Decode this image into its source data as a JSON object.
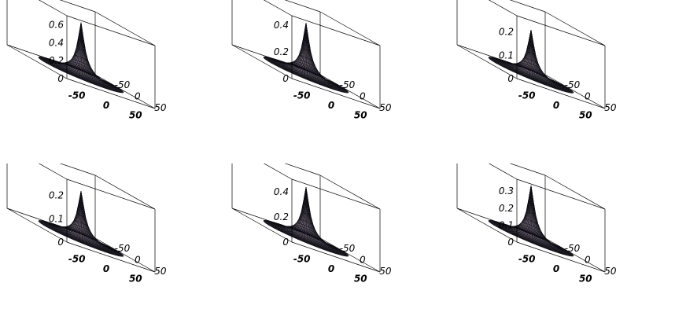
{
  "chart_data": [
    {
      "type": "surface3d",
      "surface": "radially symmetric peak on a disk",
      "x_ticks": [
        "-50",
        "0",
        "50"
      ],
      "y_ticks": [
        "50",
        "0",
        "-50"
      ],
      "z_ticks": [
        "0",
        "0.2",
        "0.4",
        "0.6"
      ],
      "z_ticks_values": [
        0,
        0.2,
        0.4,
        0.6
      ],
      "x_range": [
        -75,
        75
      ],
      "y_range": [
        -75,
        75
      ],
      "z_range": [
        0,
        0.7
      ],
      "peak": 0.6
    },
    {
      "type": "surface3d",
      "surface": "radially symmetric peak on a disk",
      "x_ticks": [
        "-50",
        "0",
        "50"
      ],
      "y_ticks": [
        "50",
        "0",
        "-50"
      ],
      "z_ticks": [
        "0",
        "0.2",
        "0.4"
      ],
      "z_ticks_values": [
        0,
        0.2,
        0.4
      ],
      "x_range": [
        -75,
        75
      ],
      "y_range": [
        -75,
        75
      ],
      "z_range": [
        0,
        0.47
      ],
      "peak": 0.4
    },
    {
      "type": "surface3d",
      "surface": "radially symmetric peak on a disk",
      "x_ticks": [
        "-50",
        "0",
        "50"
      ],
      "y_ticks": [
        "50",
        "0",
        "-50"
      ],
      "z_ticks": [
        "0",
        "0.1",
        "0.2"
      ],
      "z_ticks_values": [
        0,
        0.1,
        0.2
      ],
      "x_range": [
        -75,
        75
      ],
      "y_range": [
        -75,
        75
      ],
      "z_range": [
        0,
        0.27
      ],
      "peak": 0.2
    },
    {
      "type": "surface3d",
      "surface": "radially symmetric peak on a disk",
      "x_ticks": [
        "-50",
        "0",
        "50"
      ],
      "y_ticks": [
        "50",
        "0",
        "-50"
      ],
      "z_ticks": [
        "0",
        "0.1",
        "0.2"
      ],
      "z_ticks_values": [
        0,
        0.1,
        0.2
      ],
      "x_range": [
        -75,
        75
      ],
      "y_range": [
        -75,
        75
      ],
      "z_range": [
        0,
        0.27
      ],
      "peak": 0.21
    },
    {
      "type": "surface3d",
      "surface": "radially symmetric peak on a disk",
      "x_ticks": [
        "-50",
        "0",
        "50"
      ],
      "y_ticks": [
        "50",
        "0",
        "-50"
      ],
      "z_ticks": [
        "0",
        "0.2",
        "0.4"
      ],
      "z_ticks_values": [
        0,
        0.2,
        0.4
      ],
      "x_range": [
        -75,
        75
      ],
      "y_range": [
        -75,
        75
      ],
      "z_range": [
        0,
        0.5
      ],
      "peak": 0.42
    },
    {
      "type": "surface3d",
      "surface": "radially symmetric peak on a disk",
      "x_ticks": [
        "-50",
        "0",
        "50"
      ],
      "y_ticks": [
        "50",
        "0",
        "-50"
      ],
      "z_ticks": [
        "0",
        "0.1",
        "0.2",
        "0.3"
      ],
      "z_ticks_values": [
        0,
        0.1,
        0.2,
        0.3
      ],
      "x_range": [
        -75,
        75
      ],
      "y_range": [
        -75,
        75
      ],
      "z_range": [
        0,
        0.37
      ],
      "peak": 0.32
    }
  ],
  "style": {
    "surface_fill_high": "#c8b8c8",
    "surface_fill_low": "#2a2a36",
    "mesh_color": "#0a0a10",
    "box_color": "#000000"
  }
}
